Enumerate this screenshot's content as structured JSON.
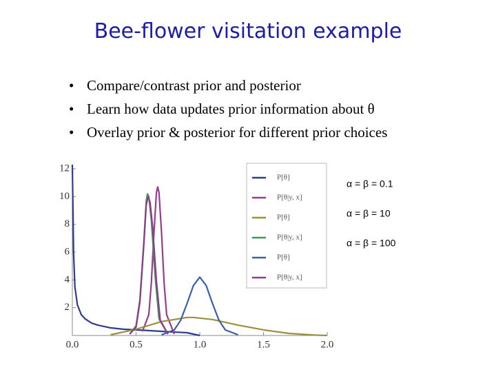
{
  "title": "Bee-flower visitation example",
  "bullets": [
    "Compare/contrast prior and posterior",
    "Learn how data updates prior information about θ",
    "Overlay prior & posterior for different prior choices"
  ],
  "chart_data": {
    "type": "line",
    "annotations": [
      "α = β = 0.1",
      "α = β = 10",
      "α = β = 100"
    ],
    "xlim": [
      0,
      2.0
    ],
    "ylim": [
      0,
      12.3
    ],
    "xticks": [
      {
        "value": 0,
        "label": "0.0"
      },
      0.5,
      {
        "value": 1,
        "label": "1.0"
      },
      1.5,
      {
        "value": 2,
        "label": "2.0"
      }
    ],
    "yticks": [
      2,
      4,
      6,
      8,
      10,
      12
    ],
    "legend": "upper right",
    "series": [
      {
        "name": "P[θ]",
        "color": "#2f3b8c",
        "x": [
          0,
          0.01,
          0.02,
          0.04,
          0.07,
          0.1,
          0.15,
          0.2,
          0.3,
          0.4,
          0.5,
          0.6,
          0.7,
          0.8,
          0.9,
          1.0
        ],
        "values": [
          12.3,
          6,
          3.5,
          2.2,
          1.5,
          1.2,
          0.9,
          0.75,
          0.55,
          0.45,
          0.4,
          0.35,
          0.3,
          0.25,
          0.2,
          0
        ]
      },
      {
        "name": "P[θ|y, x]",
        "color": "#9a3a8e",
        "x": [
          0.55,
          0.6,
          0.62,
          0.64,
          0.66,
          0.67,
          0.68,
          0.7,
          0.72,
          0.74,
          0.8
        ],
        "values": [
          0.3,
          1.5,
          3.8,
          7.3,
          10.3,
          10.7,
          10.3,
          7.4,
          3.8,
          1.5,
          0.1
        ]
      },
      {
        "name": "P[θ]",
        "color": "#9a9040",
        "x": [
          0.3,
          0.5,
          0.7,
          0.9,
          0.95,
          1.1,
          1.3,
          1.5,
          1.7,
          1.9,
          2.0
        ],
        "values": [
          0.05,
          0.45,
          1.0,
          1.3,
          1.3,
          1.15,
          0.75,
          0.4,
          0.15,
          0.03,
          0
        ]
      },
      {
        "name": "P[θ|y, x]",
        "color": "#3e9a5a",
        "x": [
          0.45,
          0.5,
          0.53,
          0.56,
          0.58,
          0.59,
          0.6,
          0.62,
          0.65,
          0.68,
          0.75
        ],
        "values": [
          0.1,
          0.7,
          2.6,
          6.6,
          9.7,
          10.2,
          10.0,
          8.3,
          4.2,
          1.2,
          0.1
        ]
      },
      {
        "name": "P[θ]",
        "color": "#3b5ea8",
        "x": [
          0.7,
          0.8,
          0.85,
          0.9,
          0.95,
          1.0,
          1.05,
          1.1,
          1.15,
          1.2,
          1.3
        ],
        "values": [
          0.05,
          0.4,
          1.1,
          2.3,
          3.6,
          4.2,
          3.6,
          2.3,
          1.1,
          0.4,
          0.05
        ]
      },
      {
        "name": "P[θ|y, x]",
        "color": "#8e3a8e",
        "x": [
          0.45,
          0.5,
          0.53,
          0.56,
          0.58,
          0.595,
          0.61,
          0.63,
          0.66,
          0.69,
          0.75
        ],
        "values": [
          0.1,
          0.6,
          2.4,
          6.4,
          9.4,
          10.0,
          9.6,
          7.8,
          3.9,
          1.1,
          0.1
        ]
      }
    ]
  }
}
